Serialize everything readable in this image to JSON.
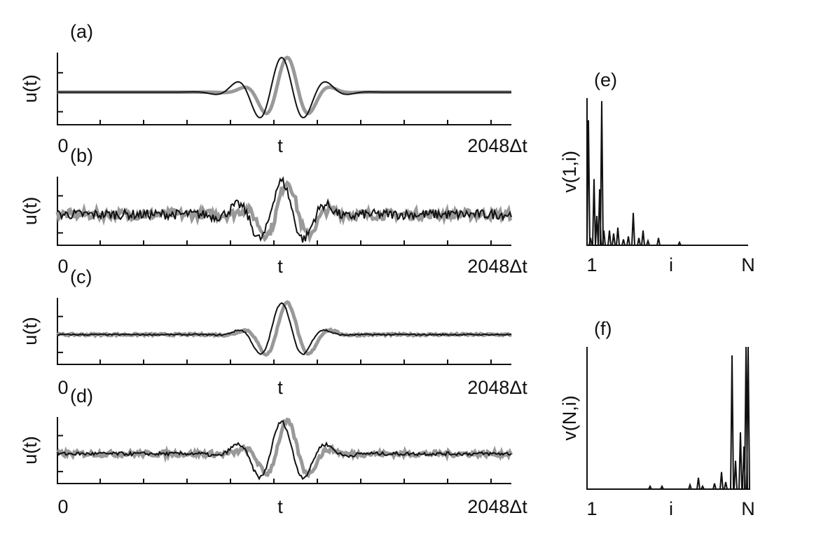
{
  "waveform_panels": [
    {
      "label": "(a)",
      "y_label": "u(t)",
      "x_labels": [
        "0",
        "t",
        "2048Δt"
      ]
    },
    {
      "label": "(b)",
      "y_label": "u(t)",
      "x_labels": [
        "0",
        "t",
        "2048Δt"
      ]
    },
    {
      "label": "(c)",
      "y_label": "u(t)",
      "x_labels": [
        "0",
        "t",
        "2048Δt"
      ]
    },
    {
      "label": "(d)",
      "y_label": "u(t)",
      "x_labels": [
        "0",
        "t",
        "2048Δt"
      ]
    }
  ],
  "spectrum_panels": [
    {
      "label": "(e)",
      "y_label": "v(1,i)",
      "x_labels": [
        "1",
        "i",
        "N"
      ]
    },
    {
      "label": "(f)",
      "y_label": "v(N,i)",
      "x_labels": [
        "1",
        "i",
        "N"
      ]
    }
  ]
}
